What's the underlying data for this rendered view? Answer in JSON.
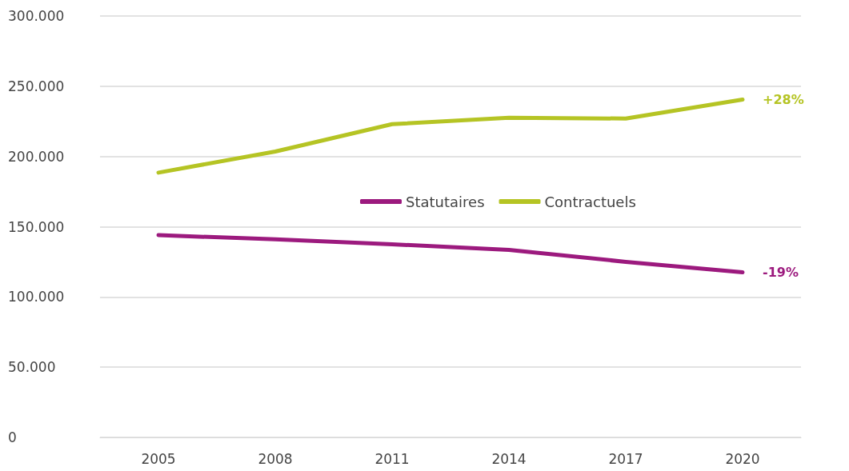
{
  "chart_data": {
    "type": "line",
    "categories": [
      "2005",
      "2008",
      "2011",
      "2014",
      "2017",
      "2020"
    ],
    "series": [
      {
        "name": "Statutaires",
        "color": "#9c1a7e",
        "values": [
          144000,
          141000,
          137500,
          133500,
          125000,
          117500
        ]
      },
      {
        "name": "Contractuels",
        "color": "#b5c424",
        "values": [
          188500,
          203500,
          223000,
          227500,
          227000,
          240500
        ]
      }
    ],
    "ylim": [
      0,
      300000
    ],
    "yticks": [
      {
        "value": 0,
        "label": "0"
      },
      {
        "value": 50000,
        "label": "50.000"
      },
      {
        "value": 100000,
        "label": "100.000"
      },
      {
        "value": 150000,
        "label": "150.000"
      },
      {
        "value": 200000,
        "label": "200.000"
      },
      {
        "value": 250000,
        "label": "250.000"
      },
      {
        "value": 300000,
        "label": "300.000"
      }
    ],
    "annotations": [
      {
        "text": "+28%",
        "x": "2020",
        "y": 240500
      },
      {
        "text": "-19%",
        "x": "2020",
        "y": 117500
      }
    ],
    "grid": "y",
    "legend": "center",
    "marker": "none",
    "line_style": "solid"
  }
}
